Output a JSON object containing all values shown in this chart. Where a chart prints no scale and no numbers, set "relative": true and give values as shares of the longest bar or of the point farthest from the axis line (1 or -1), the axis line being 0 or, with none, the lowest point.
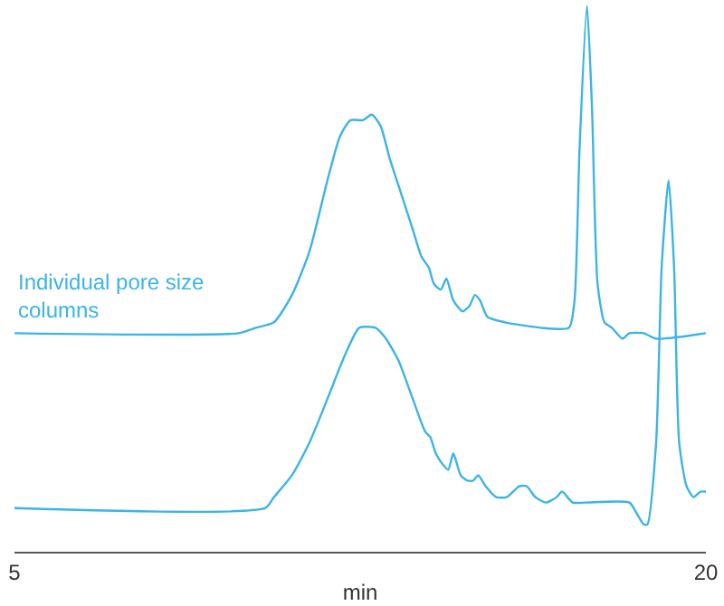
{
  "chart_data": {
    "type": "line",
    "relative": true,
    "xlabel": "min",
    "xlim": [
      5,
      20
    ],
    "xticks": [
      5,
      20
    ],
    "legend": false,
    "marker": "none",
    "line_style": "solid",
    "series": [
      {
        "name": "Individual pore size columns",
        "color": "#3cb4e5",
        "x": [
          5.0,
          9.86,
          10.24,
          10.63,
          11.02,
          11.4,
          11.79,
          12.06,
          12.29,
          12.56,
          12.75,
          12.94,
          13.14,
          13.41,
          13.64,
          13.83,
          13.99,
          14.1,
          14.25,
          14.37,
          14.52,
          14.72,
          14.87,
          14.99,
          15.1,
          15.26,
          15.64,
          16.41,
          17.03,
          17.15,
          17.26,
          17.42,
          17.53,
          17.65,
          17.8,
          17.96,
          18.19,
          18.34,
          18.65,
          18.92,
          20.0
        ],
        "values": [
          0.4,
          0.4,
          0.41,
          0.42,
          0.47,
          0.55,
          0.68,
          0.76,
          0.79,
          0.79,
          0.8,
          0.78,
          0.72,
          0.65,
          0.59,
          0.54,
          0.52,
          0.49,
          0.48,
          0.5,
          0.46,
          0.44,
          0.45,
          0.47,
          0.46,
          0.43,
          0.42,
          0.41,
          0.41,
          0.46,
          0.74,
          1.0,
          0.81,
          0.49,
          0.42,
          0.41,
          0.39,
          0.4,
          0.4,
          0.39,
          0.4
        ]
      },
      {
        "color": "#3cb4e5",
        "x": [
          5.0,
          10.44,
          10.63,
          11.02,
          11.4,
          11.79,
          12.17,
          12.48,
          12.83,
          13.06,
          13.33,
          13.64,
          13.91,
          14.02,
          14.14,
          14.29,
          14.41,
          14.52,
          14.68,
          14.83,
          14.95,
          15.06,
          15.22,
          15.45,
          15.68,
          15.95,
          16.11,
          16.3,
          16.53,
          16.76,
          16.88,
          17.11,
          17.38,
          18.34,
          18.5,
          18.65,
          18.73,
          18.92,
          19.04,
          19.19,
          19.31,
          19.42,
          19.58,
          19.73,
          19.88,
          20.0
        ],
        "values": [
          0.08,
          0.08,
          0.1,
          0.14,
          0.2,
          0.28,
          0.36,
          0.41,
          0.41,
          0.39,
          0.35,
          0.28,
          0.22,
          0.21,
          0.18,
          0.16,
          0.15,
          0.18,
          0.14,
          0.13,
          0.13,
          0.14,
          0.12,
          0.1,
          0.1,
          0.12,
          0.12,
          0.1,
          0.09,
          0.1,
          0.11,
          0.09,
          0.09,
          0.09,
          0.07,
          0.05,
          0.05,
          0.2,
          0.52,
          0.68,
          0.52,
          0.2,
          0.12,
          0.1,
          0.11,
          0.11
        ]
      }
    ]
  }
}
